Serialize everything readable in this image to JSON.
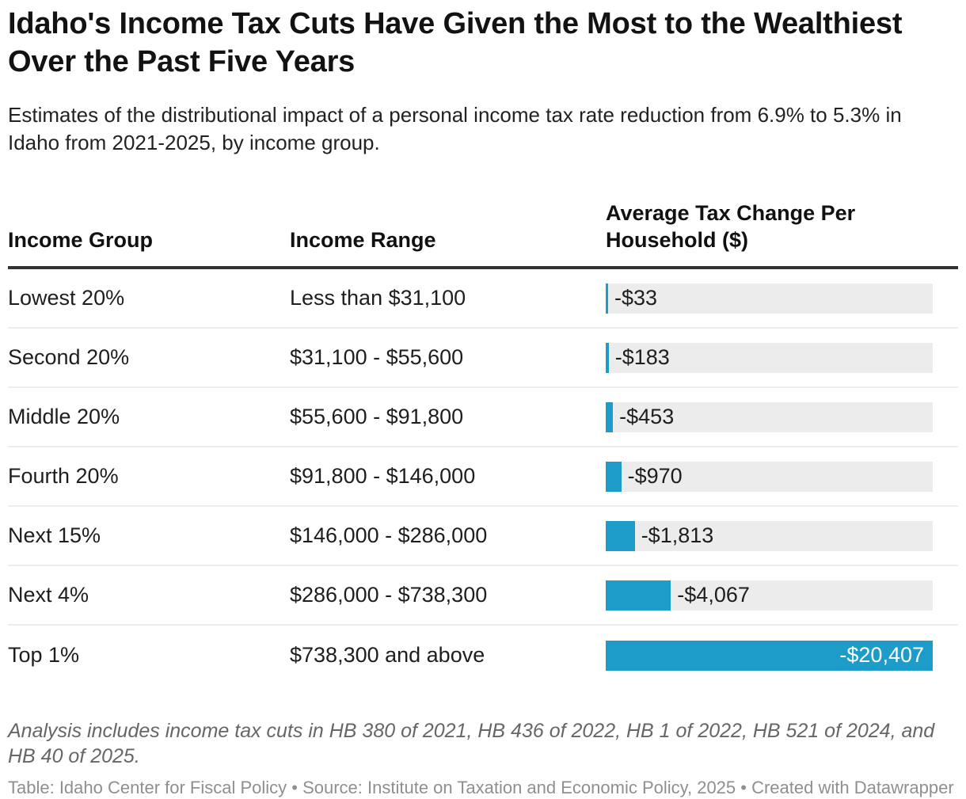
{
  "header": {
    "title": "Idaho's Income Tax Cuts Have Given the Most to the Wealthiest Over the Past Five Years",
    "subtitle": "Estimates of the distributional impact of a personal income tax rate reduction from 6.9% to 5.3% in Idaho from 2021-2025, by income group."
  },
  "table": {
    "col_headers": [
      "Income Group",
      "Income Range",
      "Average Tax Change Per Household ($)"
    ]
  },
  "chart_data": {
    "type": "table",
    "title": "Idaho's Income Tax Cuts Have Given the Most to the Wealthiest Over the Past Five Years",
    "subtitle": "Estimates of the distributional impact of a personal income tax rate reduction from 6.9% to 5.3% in Idaho from 2021-2025, by income group.",
    "columns": [
      "Income Group",
      "Income Range",
      "Average Tax Change Per Household ($)"
    ],
    "rows": [
      {
        "income_group": "Lowest 20%",
        "income_range": "Less than $31,100",
        "avg_tax_change": -33,
        "label": "-$33"
      },
      {
        "income_group": "Second 20%",
        "income_range": "$31,100 - $55,600",
        "avg_tax_change": -183,
        "label": "-$183"
      },
      {
        "income_group": "Middle 20%",
        "income_range": "$55,600 - $91,800",
        "avg_tax_change": -453,
        "label": "-$453"
      },
      {
        "income_group": "Fourth 20%",
        "income_range": "$91,800 - $146,000",
        "avg_tax_change": -970,
        "label": "-$970"
      },
      {
        "income_group": "Next 15%",
        "income_range": "$146,000 - $286,000",
        "avg_tax_change": -1813,
        "label": "-$1,813"
      },
      {
        "income_group": "Next 4%",
        "income_range": "$286,000 - $738,300",
        "avg_tax_change": -4067,
        "label": "-$4,067"
      },
      {
        "income_group": "Top 1%",
        "income_range": "$738,300 and above",
        "avg_tax_change": -20407,
        "label": "-$20,407"
      }
    ],
    "bar_axis": {
      "min": 0,
      "max_abs_value": 20407,
      "unit": "$"
    },
    "layout_hints": {
      "bar_direction": "horizontal",
      "grid": false,
      "legend": false
    },
    "colors": {
      "bar": "#1d9bc9",
      "bar_track": "#ececec",
      "inside_label": "#ffffff"
    }
  },
  "notes": {
    "footnote": "Analysis includes income tax cuts in HB 380 of 2021, HB 436 of 2022, HB 1 of 2022, HB 521 of 2024, and HB 40 of 2025.",
    "caption": "Table: Idaho Center for Fiscal Policy • Source: Institute on Taxation and Economic Policy, 2025 • Created with Datawrapper"
  }
}
